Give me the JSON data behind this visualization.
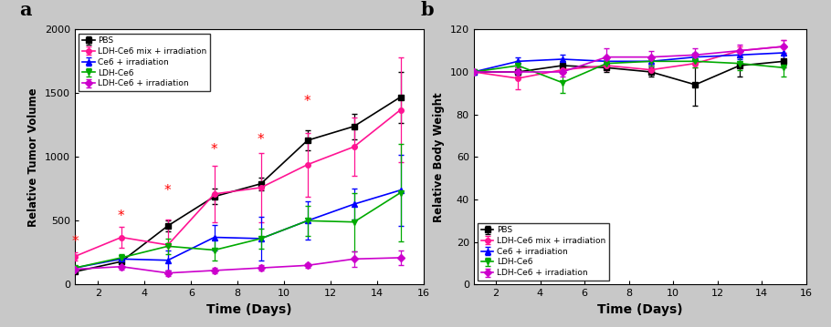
{
  "panel_a": {
    "title_label": "a",
    "xlabel": "Time (Days)",
    "ylabel": "Relative Tumor Volume",
    "xlim": [
      1,
      16
    ],
    "ylim": [
      0,
      2000
    ],
    "yticks": [
      0,
      500,
      1000,
      1500,
      2000
    ],
    "xticks": [
      2,
      4,
      6,
      8,
      10,
      12,
      14,
      16
    ],
    "series": [
      {
        "label": "PBS",
        "color": "#000000",
        "marker": "s",
        "x": [
          1,
          3,
          5,
          7,
          9,
          11,
          13,
          15
        ],
        "y": [
          100,
          180,
          460,
          690,
          790,
          1130,
          1240,
          1470
        ],
        "yerr": [
          10,
          20,
          40,
          60,
          50,
          80,
          100,
          200
        ]
      },
      {
        "label": "LDH-Ce6 mix + irradiation",
        "color": "#FF1493",
        "marker": "o",
        "x": [
          1,
          3,
          5,
          7,
          9,
          11,
          13,
          15
        ],
        "y": [
          220,
          370,
          310,
          710,
          760,
          940,
          1080,
          1370
        ],
        "yerr": [
          30,
          80,
          200,
          220,
          270,
          250,
          230,
          410
        ]
      },
      {
        "label": "Ce6 + irradiation",
        "color": "#0000FF",
        "marker": "^",
        "x": [
          1,
          3,
          5,
          7,
          9,
          11,
          13,
          15
        ],
        "y": [
          130,
          200,
          190,
          370,
          360,
          500,
          630,
          740
        ],
        "yerr": [
          10,
          30,
          80,
          100,
          170,
          150,
          120,
          280
        ]
      },
      {
        "label": "LDH-Ce6",
        "color": "#00AA00",
        "marker": "v",
        "x": [
          1,
          3,
          5,
          7,
          9,
          11,
          13,
          15
        ],
        "y": [
          130,
          210,
          300,
          270,
          360,
          500,
          490,
          720
        ],
        "yerr": [
          10,
          30,
          60,
          80,
          80,
          120,
          230,
          380
        ]
      },
      {
        "label": "LDH-Ce6 + irradiation",
        "color": "#CC00CC",
        "marker": "D",
        "x": [
          1,
          3,
          5,
          7,
          9,
          11,
          13,
          15
        ],
        "y": [
          120,
          140,
          90,
          110,
          130,
          150,
          200,
          210
        ],
        "yerr": [
          10,
          20,
          20,
          20,
          20,
          20,
          60,
          60
        ]
      }
    ],
    "stars": {
      "x": [
        1,
        3,
        5,
        7,
        9,
        11
      ],
      "y": [
        280,
        480,
        680,
        1000,
        1080,
        1380
      ]
    }
  },
  "panel_b": {
    "title_label": "b",
    "xlabel": "Time (Days)",
    "ylabel": "Relative Body Weight",
    "xlim": [
      1,
      16
    ],
    "ylim": [
      0,
      120
    ],
    "yticks": [
      0,
      20,
      40,
      60,
      80,
      100,
      120
    ],
    "xticks": [
      2,
      4,
      6,
      8,
      10,
      12,
      14,
      16
    ],
    "series": [
      {
        "label": "PBS",
        "color": "#000000",
        "marker": "s",
        "x": [
          1,
          3,
          5,
          7,
          9,
          11,
          13,
          15
        ],
        "y": [
          100,
          100,
          103,
          102,
          100,
          94,
          103,
          105
        ],
        "yerr": [
          1,
          2,
          2,
          2,
          2,
          10,
          5,
          3
        ]
      },
      {
        "label": "LDH-Ce6 mix + irradiation",
        "color": "#FF1493",
        "marker": "o",
        "x": [
          1,
          3,
          5,
          7,
          9,
          11,
          13,
          15
        ],
        "y": [
          100,
          97,
          101,
          103,
          101,
          104,
          110,
          112
        ],
        "yerr": [
          1,
          5,
          2,
          2,
          2,
          2,
          2,
          3
        ]
      },
      {
        "label": "Ce6 + irradiation",
        "color": "#0000FF",
        "marker": "^",
        "x": [
          1,
          3,
          5,
          7,
          9,
          11,
          13,
          15
        ],
        "y": [
          100,
          105,
          106,
          105,
          105,
          107,
          108,
          109
        ],
        "yerr": [
          1,
          2,
          2,
          2,
          2,
          2,
          2,
          3
        ]
      },
      {
        "label": "LDH-Ce6",
        "color": "#00AA00",
        "marker": "v",
        "x": [
          1,
          3,
          5,
          7,
          9,
          11,
          13,
          15
        ],
        "y": [
          100,
          103,
          95,
          104,
          105,
          105,
          104,
          102
        ],
        "yerr": [
          1,
          2,
          5,
          2,
          2,
          3,
          3,
          4
        ]
      },
      {
        "label": "LDH-Ce6 + irradiation",
        "color": "#CC00CC",
        "marker": "D",
        "x": [
          1,
          3,
          5,
          7,
          9,
          11,
          13,
          15
        ],
        "y": [
          100,
          100,
          100,
          107,
          107,
          108,
          110,
          112
        ],
        "yerr": [
          1,
          2,
          2,
          4,
          3,
          3,
          3,
          3
        ]
      }
    ]
  },
  "background_color": "#ffffff",
  "fig_background": "#c8c8c8"
}
